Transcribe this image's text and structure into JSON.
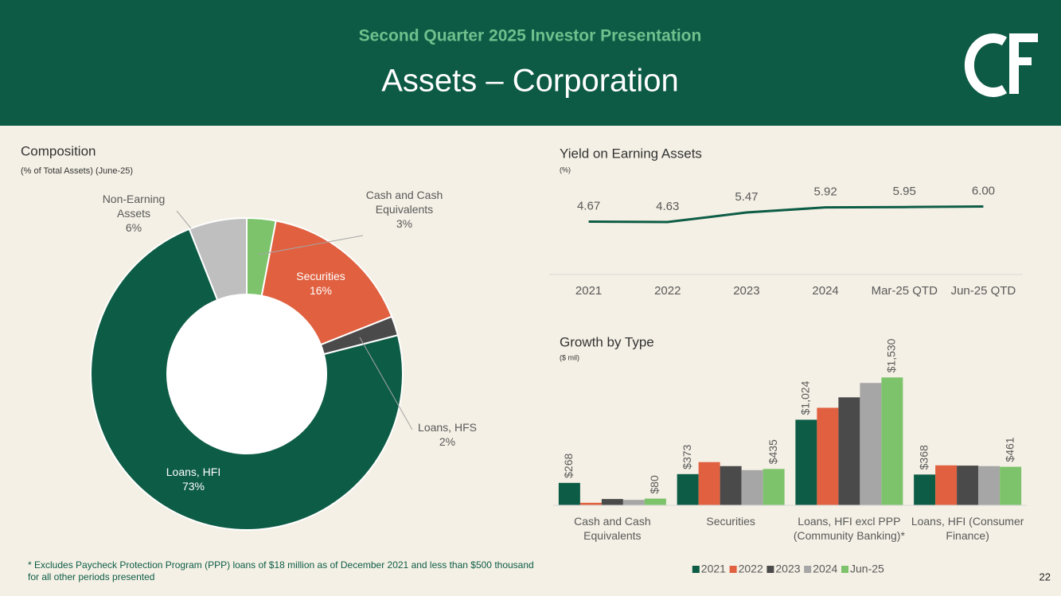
{
  "header": {
    "subtitle": "Second Quarter 2025 Investor Presentation",
    "title": "Assets – Corporation"
  },
  "chart_data": [
    {
      "type": "donut",
      "title": "Composition",
      "subtitle": "(% of Total Assets) (June-25)",
      "categories": [
        "Cash and Cash Equivalents",
        "Securities",
        "Loans, HFS",
        "Loans, HFI",
        "Non-Earning Assets"
      ],
      "values": [
        3,
        16,
        2,
        73,
        6
      ],
      "value_labels": [
        "3%",
        "16%",
        "2%",
        "73%",
        "6%"
      ],
      "colors": [
        "#7dc36b",
        "#e0603f",
        "#4a4a4a",
        "#0d5c46",
        "#bfbfbf"
      ]
    },
    {
      "type": "line",
      "title": "Yield on Earning Assets",
      "subtitle": "(%)",
      "categories": [
        "2021",
        "2022",
        "2023",
        "2024",
        "Mar-25 QTD",
        "Jun-25 QTD"
      ],
      "values": [
        4.67,
        4.63,
        5.47,
        5.92,
        5.95,
        6.0
      ],
      "value_labels": [
        "4.67",
        "4.63",
        "5.47",
        "5.92",
        "5.95",
        "6.00"
      ],
      "color": "#0d5c46",
      "ylim": [
        0,
        8
      ]
    },
    {
      "type": "bar",
      "title": "Growth by Type",
      "subtitle": "($ mil)",
      "categories": [
        "Cash and Cash Equivalents",
        "Securities",
        "Loans, HFI excl PPP (Community Banking)*",
        "Loans, HFI (Consumer Finance)"
      ],
      "ylim": [
        0,
        1700
      ],
      "legend": "bottom",
      "series": [
        {
          "name": "2021",
          "color": "#0d5c46",
          "values": [
            268,
            373,
            1024,
            368
          ],
          "value_labels": [
            "$268",
            "$373",
            "$1,024",
            "$368"
          ]
        },
        {
          "name": "2022",
          "color": "#e0603f",
          "values": [
            30,
            517,
            1167,
            478
          ]
        },
        {
          "name": "2023",
          "color": "#4a4a4a",
          "values": [
            75,
            469,
            1292,
            475
          ]
        },
        {
          "name": "2024",
          "color": "#a6a6a6",
          "values": [
            65,
            421,
            1464,
            469
          ]
        },
        {
          "name": "Jun-25",
          "color": "#7dc36b",
          "values": [
            80,
            435,
            1530,
            461
          ],
          "value_labels": [
            "$80",
            "$435",
            "$1,530",
            "$461"
          ]
        }
      ]
    }
  ],
  "footnote": "* Excludes Paycheck Protection Program (PPP) loans of $18 million as of December 2021 and less than $500 thousand for all other periods presented",
  "page_number": "22"
}
